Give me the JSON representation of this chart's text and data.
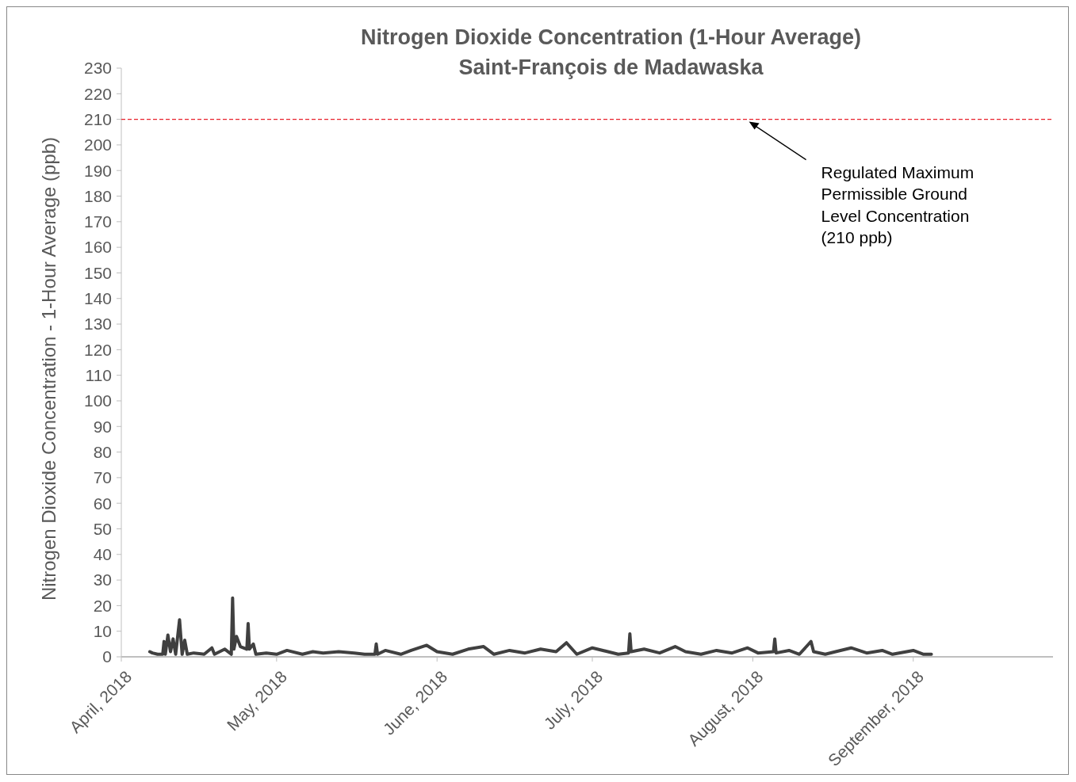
{
  "chart_data": {
    "type": "line",
    "title": "Nitrogen Dioxide Concentration (1-Hour Average)",
    "subtitle": "Saint-François de Madawaska",
    "ylabel": "Nitrogen Dioxide Concentration - 1-Hour Average (ppb)",
    "xlim": [
      "2018-04-01",
      "2018-09-28"
    ],
    "xticks": [
      {
        "value": "2018-04-01",
        "label": "April, 2018"
      },
      {
        "value": "2018-05-01",
        "label": "May, 2018"
      },
      {
        "value": "2018-06-01",
        "label": "June, 2018"
      },
      {
        "value": "2018-07-01",
        "label": "July, 2018"
      },
      {
        "value": "2018-08-01",
        "label": "August, 2018"
      },
      {
        "value": "2018-09-01",
        "label": "September, 2018"
      }
    ],
    "ylim": [
      0,
      230
    ],
    "yticks": [
      0,
      10,
      20,
      30,
      40,
      50,
      60,
      70,
      80,
      90,
      100,
      110,
      120,
      130,
      140,
      150,
      160,
      170,
      180,
      190,
      200,
      210,
      220,
      230
    ],
    "grid": false,
    "marker": "none",
    "line_style": "solid",
    "series": [
      {
        "color": "#404040",
        "x": [
          "2018-04-06T12:00",
          "2018-04-07",
          "2018-04-08",
          "2018-04-09T00:00",
          "2018-04-09T06:00",
          "2018-04-09T12:00",
          "2018-04-10T00:00",
          "2018-04-10T12:00",
          "2018-04-11T00:00",
          "2018-04-11T12:00",
          "2018-04-12T06:00",
          "2018-04-12T18:00",
          "2018-04-13T06:00",
          "2018-04-13T18:00",
          "2018-04-15",
          "2018-04-17",
          "2018-04-18T12:00",
          "2018-04-19",
          "2018-04-20",
          "2018-04-21",
          "2018-04-22T06:00",
          "2018-04-22T12:00",
          "2018-04-22T18:00",
          "2018-04-23T06:00",
          "2018-04-24",
          "2018-04-25T06:00",
          "2018-04-25T12:00",
          "2018-04-25T18:00",
          "2018-04-26T12:00",
          "2018-04-27",
          "2018-04-29",
          "2018-05-01",
          "2018-05-03",
          "2018-05-06",
          "2018-05-08",
          "2018-05-10",
          "2018-05-13",
          "2018-05-16",
          "2018-05-18",
          "2018-05-20T00:00",
          "2018-05-20T06:00",
          "2018-05-20T12:00",
          "2018-05-22",
          "2018-05-25",
          "2018-05-27",
          "2018-05-30",
          "2018-06-01",
          "2018-06-04",
          "2018-06-07",
          "2018-06-10",
          "2018-06-12",
          "2018-06-15",
          "2018-06-18",
          "2018-06-21",
          "2018-06-24",
          "2018-06-26",
          "2018-06-28",
          "2018-07-01",
          "2018-07-04",
          "2018-07-06",
          "2018-07-08T00:00",
          "2018-07-08T06:00",
          "2018-07-08T12:00",
          "2018-07-11",
          "2018-07-14",
          "2018-07-17",
          "2018-07-19",
          "2018-07-22",
          "2018-07-25",
          "2018-07-28",
          "2018-07-31",
          "2018-08-02",
          "2018-08-05T00:00",
          "2018-08-05T06:00",
          "2018-08-05T12:00",
          "2018-08-08",
          "2018-08-10",
          "2018-08-12T06:00",
          "2018-08-12T18:00",
          "2018-08-15",
          "2018-08-17",
          "2018-08-20",
          "2018-08-23",
          "2018-08-26",
          "2018-08-28",
          "2018-09-01",
          "2018-09-03",
          "2018-09-04T12:00"
        ],
        "values": [
          2,
          1.5,
          1,
          1,
          6,
          1,
          8.5,
          2,
          7,
          1,
          14.5,
          1,
          6.5,
          1,
          1.5,
          1,
          3.5,
          1,
          2,
          3,
          1,
          23,
          3,
          8,
          4,
          3,
          13,
          3,
          5,
          1,
          1.5,
          1,
          2.5,
          1,
          2,
          1.5,
          2,
          1.5,
          1,
          1,
          5,
          1,
          2.5,
          1,
          2.5,
          4.5,
          2,
          1,
          3,
          4,
          1,
          2.5,
          1.5,
          3,
          2,
          5.5,
          1,
          3.5,
          2,
          1,
          1.5,
          9,
          2,
          3,
          1.5,
          4,
          2,
          1,
          2.5,
          1.5,
          3.5,
          1.5,
          2,
          7,
          1.5,
          2.5,
          1,
          6,
          2,
          1,
          2,
          3.5,
          1.5,
          2.5,
          1,
          2.5,
          1,
          1
        ]
      }
    ],
    "ref_lines": [
      {
        "axis": "y",
        "value": 210,
        "color": "#e8202a",
        "line_style": "dashed",
        "label": "Regulated Maximum\nPermissible Ground\nLevel Concentration\n(210 ppb)"
      }
    ]
  }
}
